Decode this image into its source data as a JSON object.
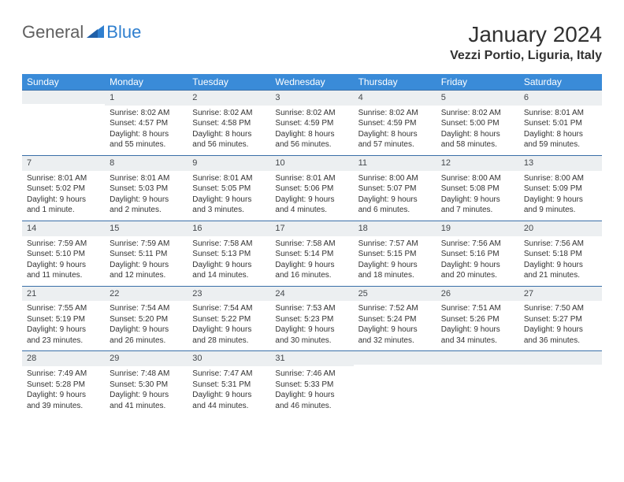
{
  "brand": {
    "part1": "General",
    "part2": "Blue"
  },
  "title": "January 2024",
  "location": "Vezzi Portio, Liguria, Italy",
  "colors": {
    "header_bg": "#3a8bd8",
    "header_text": "#ffffff",
    "cell_border": "#3a6fa8",
    "daynum_bg": "#eceff1",
    "logo_gray": "#606060",
    "logo_blue": "#2f7fcf"
  },
  "daysOfWeek": [
    "Sunday",
    "Monday",
    "Tuesday",
    "Wednesday",
    "Thursday",
    "Friday",
    "Saturday"
  ],
  "startWeekday": 1,
  "days": [
    {
      "n": 1,
      "sr": "8:02 AM",
      "ss": "4:57 PM",
      "dl": "8 hours and 55 minutes."
    },
    {
      "n": 2,
      "sr": "8:02 AM",
      "ss": "4:58 PM",
      "dl": "8 hours and 56 minutes."
    },
    {
      "n": 3,
      "sr": "8:02 AM",
      "ss": "4:59 PM",
      "dl": "8 hours and 56 minutes."
    },
    {
      "n": 4,
      "sr": "8:02 AM",
      "ss": "4:59 PM",
      "dl": "8 hours and 57 minutes."
    },
    {
      "n": 5,
      "sr": "8:02 AM",
      "ss": "5:00 PM",
      "dl": "8 hours and 58 minutes."
    },
    {
      "n": 6,
      "sr": "8:01 AM",
      "ss": "5:01 PM",
      "dl": "8 hours and 59 minutes."
    },
    {
      "n": 7,
      "sr": "8:01 AM",
      "ss": "5:02 PM",
      "dl": "9 hours and 1 minute."
    },
    {
      "n": 8,
      "sr": "8:01 AM",
      "ss": "5:03 PM",
      "dl": "9 hours and 2 minutes."
    },
    {
      "n": 9,
      "sr": "8:01 AM",
      "ss": "5:05 PM",
      "dl": "9 hours and 3 minutes."
    },
    {
      "n": 10,
      "sr": "8:01 AM",
      "ss": "5:06 PM",
      "dl": "9 hours and 4 minutes."
    },
    {
      "n": 11,
      "sr": "8:00 AM",
      "ss": "5:07 PM",
      "dl": "9 hours and 6 minutes."
    },
    {
      "n": 12,
      "sr": "8:00 AM",
      "ss": "5:08 PM",
      "dl": "9 hours and 7 minutes."
    },
    {
      "n": 13,
      "sr": "8:00 AM",
      "ss": "5:09 PM",
      "dl": "9 hours and 9 minutes."
    },
    {
      "n": 14,
      "sr": "7:59 AM",
      "ss": "5:10 PM",
      "dl": "9 hours and 11 minutes."
    },
    {
      "n": 15,
      "sr": "7:59 AM",
      "ss": "5:11 PM",
      "dl": "9 hours and 12 minutes."
    },
    {
      "n": 16,
      "sr": "7:58 AM",
      "ss": "5:13 PM",
      "dl": "9 hours and 14 minutes."
    },
    {
      "n": 17,
      "sr": "7:58 AM",
      "ss": "5:14 PM",
      "dl": "9 hours and 16 minutes."
    },
    {
      "n": 18,
      "sr": "7:57 AM",
      "ss": "5:15 PM",
      "dl": "9 hours and 18 minutes."
    },
    {
      "n": 19,
      "sr": "7:56 AM",
      "ss": "5:16 PM",
      "dl": "9 hours and 20 minutes."
    },
    {
      "n": 20,
      "sr": "7:56 AM",
      "ss": "5:18 PM",
      "dl": "9 hours and 21 minutes."
    },
    {
      "n": 21,
      "sr": "7:55 AM",
      "ss": "5:19 PM",
      "dl": "9 hours and 23 minutes."
    },
    {
      "n": 22,
      "sr": "7:54 AM",
      "ss": "5:20 PM",
      "dl": "9 hours and 26 minutes."
    },
    {
      "n": 23,
      "sr": "7:54 AM",
      "ss": "5:22 PM",
      "dl": "9 hours and 28 minutes."
    },
    {
      "n": 24,
      "sr": "7:53 AM",
      "ss": "5:23 PM",
      "dl": "9 hours and 30 minutes."
    },
    {
      "n": 25,
      "sr": "7:52 AM",
      "ss": "5:24 PM",
      "dl": "9 hours and 32 minutes."
    },
    {
      "n": 26,
      "sr": "7:51 AM",
      "ss": "5:26 PM",
      "dl": "9 hours and 34 minutes."
    },
    {
      "n": 27,
      "sr": "7:50 AM",
      "ss": "5:27 PM",
      "dl": "9 hours and 36 minutes."
    },
    {
      "n": 28,
      "sr": "7:49 AM",
      "ss": "5:28 PM",
      "dl": "9 hours and 39 minutes."
    },
    {
      "n": 29,
      "sr": "7:48 AM",
      "ss": "5:30 PM",
      "dl": "9 hours and 41 minutes."
    },
    {
      "n": 30,
      "sr": "7:47 AM",
      "ss": "5:31 PM",
      "dl": "9 hours and 44 minutes."
    },
    {
      "n": 31,
      "sr": "7:46 AM",
      "ss": "5:33 PM",
      "dl": "9 hours and 46 minutes."
    }
  ],
  "labels": {
    "sunrise": "Sunrise:",
    "sunset": "Sunset:",
    "daylight": "Daylight:"
  }
}
